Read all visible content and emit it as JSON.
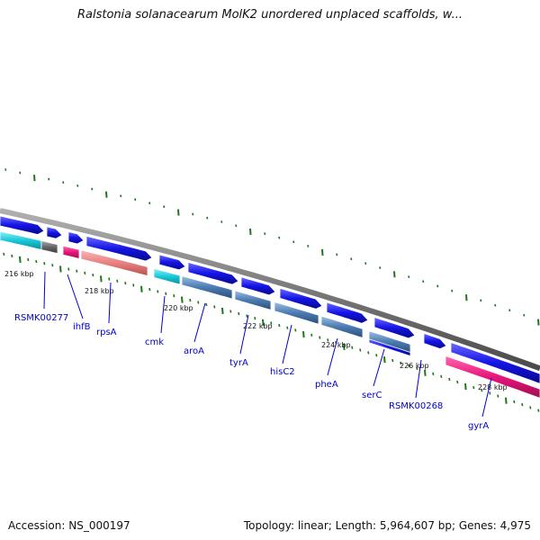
{
  "title": "Ralstonia solanacearum MolK2 unordered unplaced scaffolds, w...",
  "footer": {
    "accession": "Accession: NS_000197",
    "summary": "Topology: linear; Length: 5,964,607 bp; Genes: 4,975"
  },
  "colors": {
    "cds_forward": "#1414e6",
    "backbone": "#7a7a7a",
    "tick": "#1a7a1a",
    "label": "#0000cc",
    "cyan": "#18c8d8",
    "salmon": "#e88080",
    "magenta": "#e8147a",
    "steel": "#4a7ab0",
    "gray": "#666666"
  },
  "kbp_labels": [
    "216 kbp",
    "218 kbp",
    "220 kbp",
    "222 kbp",
    "224 kbp",
    "226 kbp",
    "228 kbp"
  ],
  "genes": [
    "RSMK00277",
    "ihfB",
    "rpsA",
    "cmk",
    "aroA",
    "tyrA",
    "hisC2",
    "pheA",
    "serC",
    "RSMK00268",
    "gyrA"
  ]
}
